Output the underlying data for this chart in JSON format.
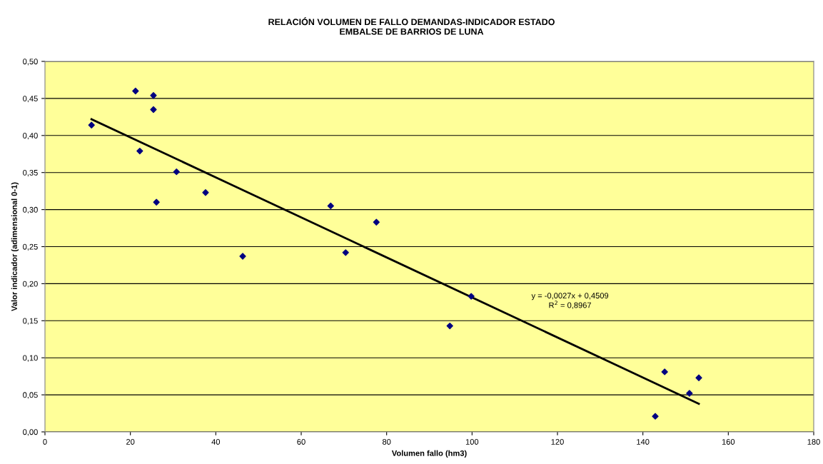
{
  "chart_data": {
    "type": "scatter",
    "title": "RELACIÓN VOLUMEN DE FALLO DEMANDAS-INDICADOR ESTADO\nEMBALSE DE BARRIOS DE LUNA",
    "xlabel": "Volumen fallo (hm3)",
    "ylabel": "Valor indicador (adimensional 0-1)",
    "x": [
      10.9,
      21.2,
      25.4,
      25.4,
      22.2,
      30.8,
      26.1,
      37.6,
      46.3,
      66.9,
      70.4,
      77.6,
      94.8,
      99.8,
      142.9,
      145.1,
      150.9,
      153.1
    ],
    "series": [
      {
        "color": "#000080",
        "marker": "diamond",
        "values": [
          0.414,
          0.46,
          0.454,
          0.435,
          0.379,
          0.351,
          0.31,
          0.323,
          0.237,
          0.305,
          0.242,
          0.283,
          0.143,
          0.183,
          0.021,
          0.081,
          0.052,
          0.073
        ]
      },
      {
        "type": "line",
        "color": "#000000",
        "marker": "none",
        "line_style": "solid",
        "x": [
          10.9,
          153.1
        ],
        "values": [
          0.422,
          0.038
        ]
      }
    ],
    "annotations": [
      "y = -0,0027x + 0,4509\nR$^{2}$ = 0,8967"
    ],
    "xlim": [
      0,
      180
    ],
    "xticks": [
      0,
      20,
      40,
      60,
      80,
      100,
      120,
      140,
      160,
      180
    ],
    "ylim": [
      0,
      0.5
    ],
    "yticks": [
      {
        "value": 0,
        "label": "0,00"
      },
      {
        "value": 0.05,
        "label": "0,05"
      },
      {
        "value": 0.1,
        "label": "0,10"
      },
      {
        "value": 0.15,
        "label": "0,15"
      },
      {
        "value": 0.2,
        "label": "0,20"
      },
      {
        "value": 0.25,
        "label": "0,25"
      },
      {
        "value": 0.3,
        "label": "0,30"
      },
      {
        "value": 0.35,
        "label": "0,35"
      },
      {
        "value": 0.4,
        "label": "0,40"
      },
      {
        "value": 0.45,
        "label": "0,45"
      },
      {
        "value": 0.5,
        "label": "0,50"
      }
    ],
    "grid": "y",
    "legend": false
  }
}
